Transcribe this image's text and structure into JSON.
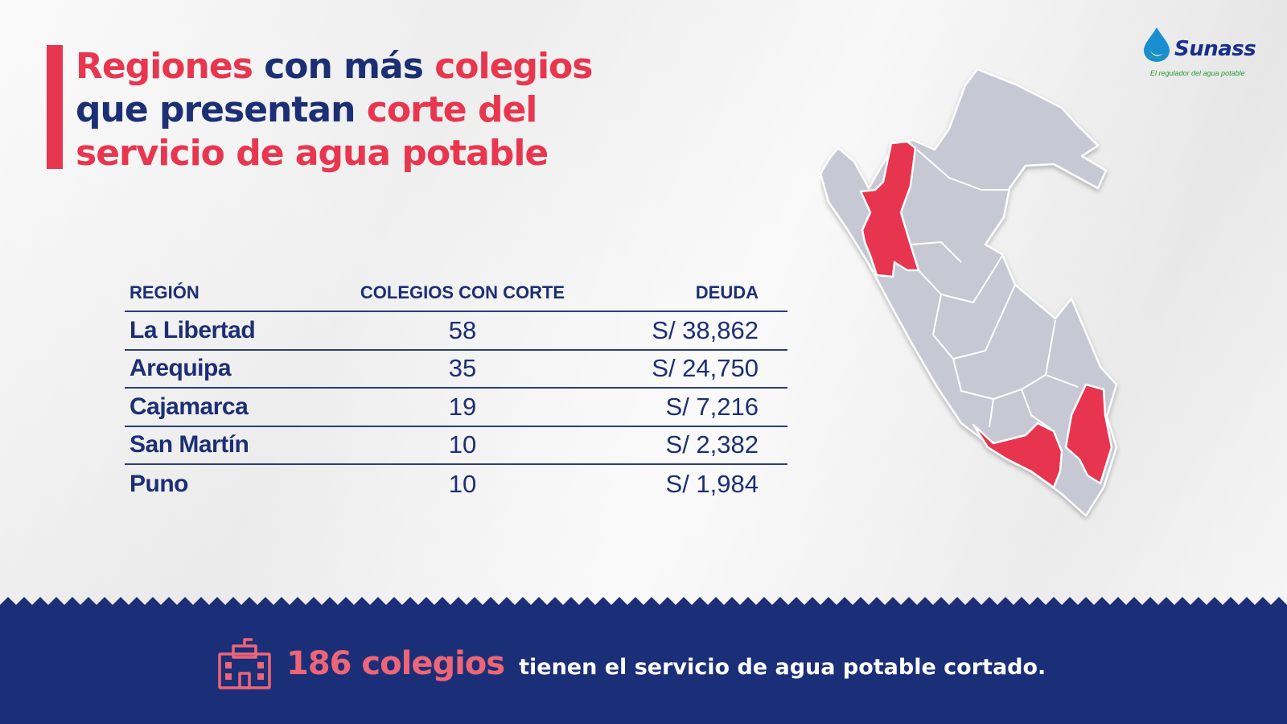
{
  "title": {
    "line1": [
      {
        "text": "Regiones",
        "accent": true
      },
      {
        "text": " con más ",
        "accent": false
      },
      {
        "text": "colegios",
        "accent": true
      }
    ],
    "line2": [
      {
        "text": "que presentan ",
        "accent": false
      },
      {
        "text": "corte del",
        "accent": true
      }
    ],
    "line3": [
      {
        "text": "servicio de agua potable",
        "accent": true
      }
    ]
  },
  "logo": {
    "name": "Sunass",
    "tagline": "El regulador del agua potable"
  },
  "table": {
    "headers": {
      "region": "REGIÓN",
      "colegios": "COLEGIOS CON CORTE",
      "deuda": "DEUDA"
    },
    "rows": [
      {
        "region": "La Libertad",
        "colegios": "58",
        "deuda": "S/ 38,862"
      },
      {
        "region": "Arequipa",
        "colegios": "35",
        "deuda": "S/ 24,750"
      },
      {
        "region": "Cajamarca",
        "colegios": "19",
        "deuda": "S/ 7,216"
      },
      {
        "region": "San Martín",
        "colegios": "10",
        "deuda": "S/ 2,382"
      },
      {
        "region": "Puno",
        "colegios": "10",
        "deuda": "S/ 1,984"
      }
    ]
  },
  "footer": {
    "icon": "school-icon",
    "count": "186 colegios",
    "text": "tienen el servicio de agua potable cortado."
  },
  "colors": {
    "accent": "#e8364f",
    "navy": "#1c2f74",
    "map_gray": "#c6c9d3",
    "footer_bg": "#1b2f78"
  }
}
